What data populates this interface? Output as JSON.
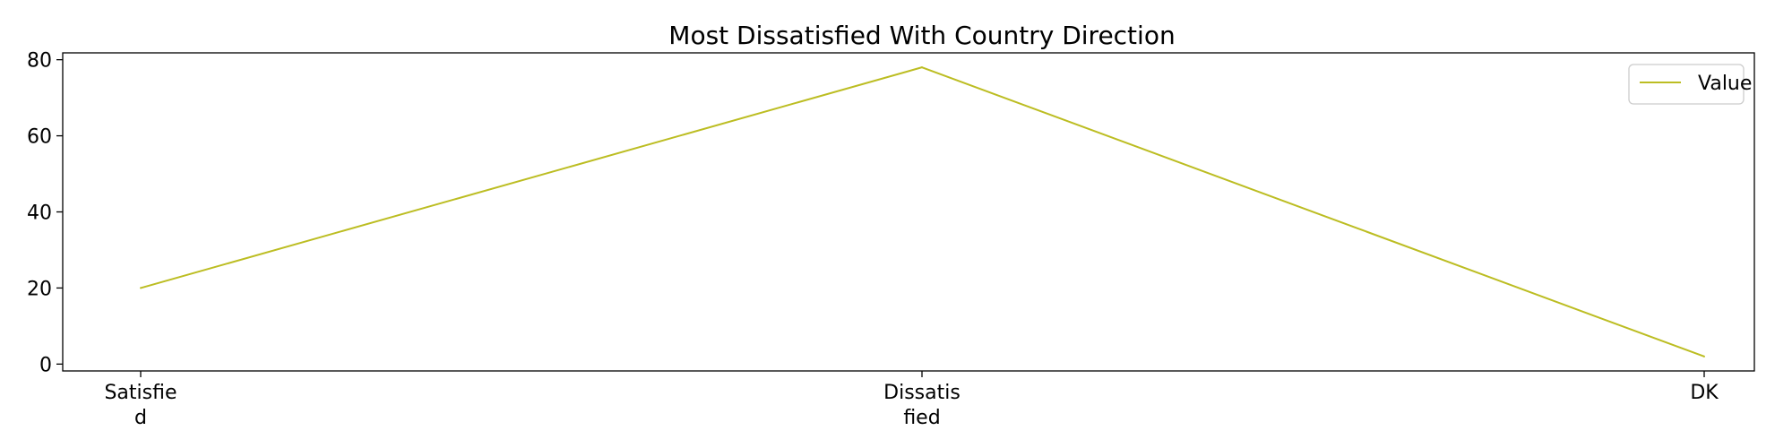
{
  "chart_data": {
    "type": "line",
    "title": "Most Dissatisfied With Country Direction",
    "xlabel": "",
    "ylabel": "",
    "categories": [
      [
        "Satisfie",
        "d"
      ],
      [
        "Dissatis",
        "fied"
      ],
      [
        "DK"
      ]
    ],
    "series": [
      {
        "name": "Value",
        "values": [
          20,
          78,
          2
        ],
        "color": "#bcbd22"
      }
    ],
    "y_ticks": [
      0,
      20,
      40,
      60,
      80
    ],
    "ylim": [
      -1.8,
      81.8
    ],
    "grid": false,
    "legend_position": "top-right"
  }
}
